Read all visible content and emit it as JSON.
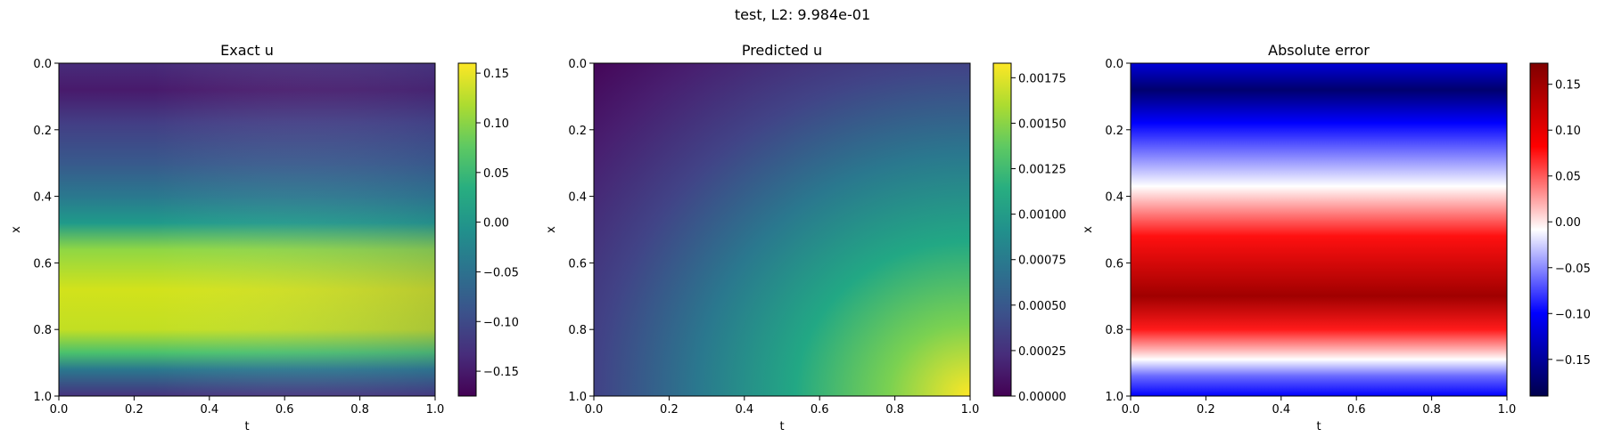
{
  "figure": {
    "title": "test, L2: 9.984e-01"
  },
  "chart_data": [
    {
      "type": "heatmap",
      "title": "Exact u",
      "xlabel": "t",
      "ylabel": "x",
      "xlim": [
        0.0,
        1.0
      ],
      "ylim": [
        1.0,
        0.0
      ],
      "xticks": [
        "0.0",
        "0.2",
        "0.4",
        "0.6",
        "0.8",
        "1.0"
      ],
      "yticks": [
        "0.0",
        "0.2",
        "0.4",
        "0.6",
        "0.8",
        "1.0"
      ],
      "colormap": "viridis",
      "colorbar": {
        "min": -0.175,
        "max": 0.16,
        "ticks": [
          0.15,
          0.1,
          0.05,
          0.0,
          -0.05,
          -0.1,
          -0.15
        ],
        "ticklabels": [
          "0.15",
          "0.10",
          "0.05",
          "0.00",
          "−0.05",
          "−0.10",
          "−0.15"
        ]
      }
    },
    {
      "type": "heatmap",
      "title": "Predicted u",
      "xlabel": "t",
      "ylabel": "x",
      "xlim": [
        0.0,
        1.0
      ],
      "ylim": [
        1.0,
        0.0
      ],
      "xticks": [
        "0.0",
        "0.2",
        "0.4",
        "0.6",
        "0.8",
        "1.0"
      ],
      "yticks": [
        "0.0",
        "0.2",
        "0.4",
        "0.6",
        "0.8",
        "1.0"
      ],
      "colormap": "viridis",
      "colorbar": {
        "min": 0.0,
        "max": 0.00183,
        "ticks": [
          0.00175,
          0.0015,
          0.00125,
          0.001,
          0.00075,
          0.0005,
          0.00025,
          0.0
        ],
        "ticklabels": [
          "0.00175",
          "0.00150",
          "0.00125",
          "0.00100",
          "0.00075",
          "0.00050",
          "0.00025",
          "0.00000"
        ]
      }
    },
    {
      "type": "heatmap",
      "title": "Absolute error",
      "xlabel": "t",
      "ylabel": "x",
      "xlim": [
        0.0,
        1.0
      ],
      "ylim": [
        1.0,
        0.0
      ],
      "xticks": [
        "0.0",
        "0.2",
        "0.4",
        "0.6",
        "0.8",
        "1.0"
      ],
      "yticks": [
        "0.0",
        "0.2",
        "0.4",
        "0.6",
        "0.8",
        "1.0"
      ],
      "colormap": "seismic",
      "colorbar": {
        "min": -0.19,
        "max": 0.173,
        "ticks": [
          0.15,
          0.1,
          0.05,
          0.0,
          -0.05,
          -0.1,
          -0.15
        ],
        "ticklabels": [
          "0.15",
          "0.10",
          "0.05",
          "0.00",
          "−0.05",
          "−0.10",
          "−0.15"
        ]
      }
    }
  ]
}
